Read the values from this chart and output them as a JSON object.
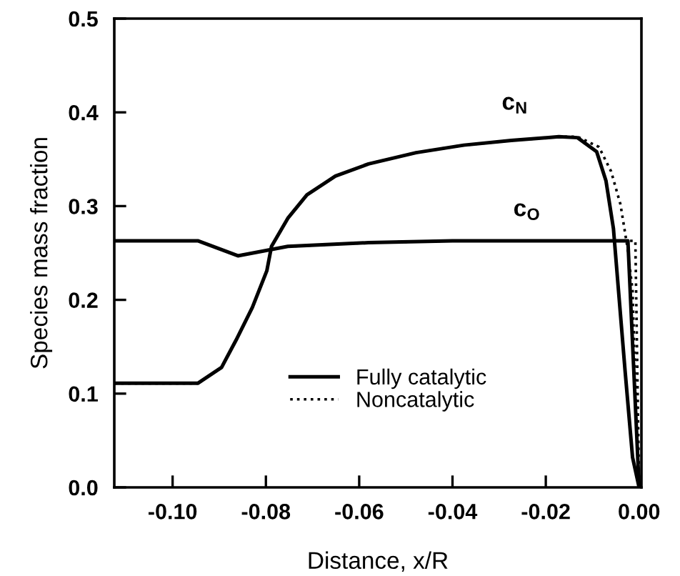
{
  "chart_data": {
    "type": "line",
    "xlabel": "Distance, x/R",
    "ylabel": "Species mass fraction",
    "xlim": [
      -0.1125,
      0.0005
    ],
    "ylim": [
      0,
      0.5
    ],
    "xticks": [
      {
        "value": -0.1,
        "label": "-0.10"
      },
      {
        "value": -0.08,
        "label": "-0.08"
      },
      {
        "value": -0.06,
        "label": "-0.06"
      },
      {
        "value": -0.04,
        "label": "-0.04"
      },
      {
        "value": -0.02,
        "label": "-0.02"
      },
      {
        "value": 0,
        "label": "0.00"
      }
    ],
    "yticks": [
      {
        "value": 0,
        "label": "0.0"
      },
      {
        "value": 0.1,
        "label": "0.1"
      },
      {
        "value": 0.2,
        "label": "0.2"
      },
      {
        "value": 0.3,
        "label": "0.3"
      },
      {
        "value": 0.4,
        "label": "0.4"
      },
      {
        "value": 0.5,
        "label": "0.5"
      }
    ],
    "grid": false,
    "legend": "bottom",
    "marker": "none",
    "annotations": [
      "c$_{N}$",
      "c$_{O}$"
    ],
    "series": [
      {
        "name": "Fully catalytic",
        "color": "#000000",
        "line_style": "solid",
        "x": [
          -0.1125,
          -0.0946,
          -0.0895,
          -0.0864,
          -0.0829,
          -0.0798,
          -0.0788,
          -0.0753,
          -0.0712,
          -0.0651,
          -0.058,
          -0.0478,
          -0.0376,
          -0.0274,
          -0.0172,
          -0.0132,
          -0.0091,
          -0.0071,
          -0.0055,
          -0.0045,
          -0.003,
          -0.0014,
          0.0
        ],
        "values": [
          0.111,
          0.111,
          0.128,
          0.157,
          0.192,
          0.231,
          0.257,
          0.287,
          0.312,
          0.332,
          0.345,
          0.357,
          0.365,
          0.37,
          0.374,
          0.373,
          0.358,
          0.327,
          0.276,
          0.215,
          0.124,
          0.032,
          0.0
        ]
      },
      {
        "color": "#000000",
        "line_style": "solid",
        "x": [
          -0.1125,
          -0.0946,
          -0.086,
          -0.0753,
          -0.058,
          -0.04,
          -0.0024,
          0.0
        ],
        "values": [
          0.263,
          0.263,
          0.247,
          0.257,
          0.261,
          0.263,
          0.263,
          0.0
        ]
      },
      {
        "name": "Noncatalytic",
        "color": "#000000",
        "line_style": "dotted",
        "x": [
          -0.1125,
          -0.0946,
          -0.0895,
          -0.0864,
          -0.0829,
          -0.0798,
          -0.0788,
          -0.0753,
          -0.0712,
          -0.0651,
          -0.058,
          -0.0478,
          -0.0376,
          -0.0274,
          -0.0172,
          -0.0132,
          -0.0086,
          -0.006,
          -0.004,
          -0.0025,
          -0.0014,
          -0.0009,
          0.0
        ],
        "values": [
          0.111,
          0.111,
          0.128,
          0.157,
          0.192,
          0.231,
          0.257,
          0.287,
          0.312,
          0.332,
          0.345,
          0.357,
          0.365,
          0.37,
          0.374,
          0.374,
          0.363,
          0.337,
          0.302,
          0.256,
          0.21,
          0.124,
          0.0
        ]
      },
      {
        "color": "#000000",
        "line_style": "dotted",
        "x": [
          -0.1125,
          -0.0946,
          -0.086,
          -0.0753,
          -0.058,
          -0.04,
          -0.0008,
          0.0
        ],
        "values": [
          0.263,
          0.263,
          0.247,
          0.257,
          0.261,
          0.263,
          0.263,
          0.0
        ]
      }
    ]
  }
}
